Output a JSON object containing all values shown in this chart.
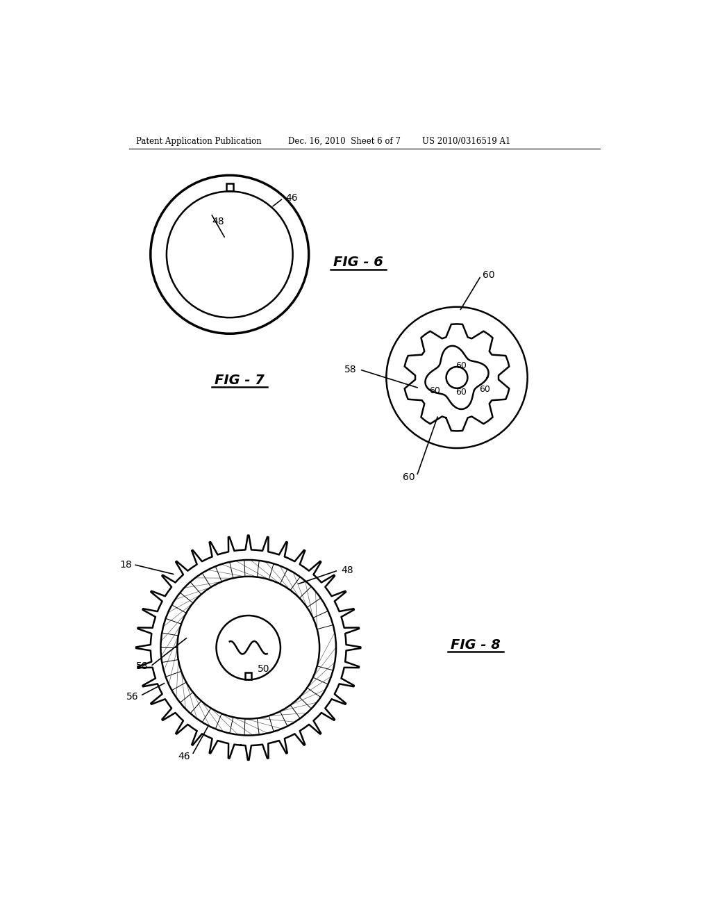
{
  "bg_color": "#ffffff",
  "line_color": "#000000",
  "header_left": "Patent Application Publication",
  "header_mid": "Dec. 16, 2010  Sheet 6 of 7",
  "header_right": "US 2010/0316519 A1",
  "fig6_label": "FIG - 6",
  "fig7_label": "FIG - 7",
  "fig8_label": "FIG - 8",
  "label_46_fig6": "46",
  "label_48_fig6": "48",
  "label_60_top": "60",
  "label_58_fig7": "58",
  "label_18": "18",
  "label_48_fig8": "48",
  "label_58_fig8": "58",
  "label_50": "50",
  "label_56": "56",
  "label_46_fig8": "46"
}
